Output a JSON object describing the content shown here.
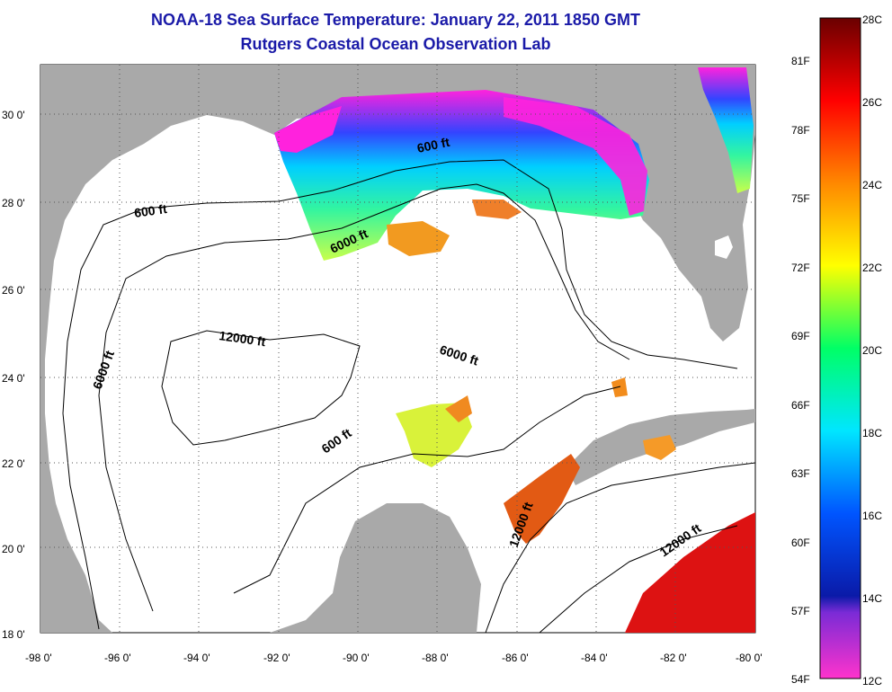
{
  "header": {
    "title": "NOAA-18 Sea Surface Temperature:  January 22, 2011 1850 GMT",
    "subtitle": "Rutgers Coastal Ocean Observation Lab"
  },
  "map": {
    "region": "Gulf of Mexico",
    "lon_range": [
      -98,
      -80
    ],
    "lat_range": [
      18,
      31
    ],
    "lon_ticks": [
      "-98 0'",
      "-96 0'",
      "-94 0'",
      "-92 0'",
      "-90 0'",
      "-88 0'",
      "-86 0'",
      "-84 0'",
      "-82 0'",
      "-80 0'"
    ],
    "lat_ticks": [
      "18 0'",
      "20 0'",
      "22 0'",
      "24 0'",
      "26 0'",
      "28 0'",
      "30 0'"
    ],
    "grid": "dotted",
    "land_color": "#a9a9a9",
    "contour_labels": [
      "600 ft",
      "600 ft",
      "6000 ft",
      "6000 ft",
      "6000 ft",
      "12000 ft",
      "600 ft",
      "12000 ft",
      "12000 ft"
    ]
  },
  "colorbar": {
    "celsius_labels": [
      "28C",
      "26C",
      "24C",
      "22C",
      "20C",
      "18C",
      "16C",
      "14C",
      "12C"
    ],
    "fahrenheit_labels": [
      "81F",
      "78F",
      "75F",
      "72F",
      "69F",
      "66F",
      "63F",
      "60F",
      "57F",
      "54F"
    ],
    "colors": [
      "#7a0000",
      "#ff0000",
      "#ff8800",
      "#ffff00",
      "#00ff66",
      "#00e6ff",
      "#0055ff",
      "#3300cc",
      "#ff00ff"
    ]
  }
}
